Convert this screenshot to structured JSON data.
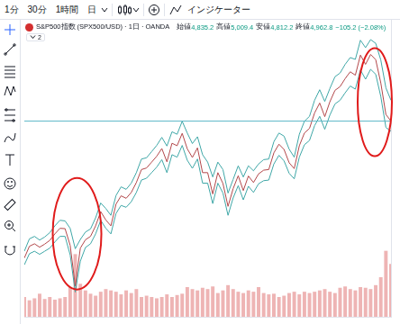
{
  "toolbar": {
    "intervals": [
      "1分",
      "30分",
      "1時間",
      "日"
    ],
    "indicators": "インジケーター"
  },
  "header": {
    "title": "S&P500指数 (SPX500/USD) · 1日 · OANDA",
    "ohlc": [
      {
        "label": "始値",
        "value": "4,835.2"
      },
      {
        "label": "高値",
        "value": "5,009.4"
      },
      {
        "label": "安値",
        "value": "4,812.2"
      },
      {
        "label": "終値",
        "value": "4,962.8"
      }
    ],
    "change": "−105.2 (−2.08%)",
    "indicator_count": 2
  },
  "chart_data": {
    "type": "line",
    "categories": [
      null,
      null,
      null,
      null,
      null,
      null,
      null,
      null,
      null,
      null,
      null,
      null,
      null,
      null,
      null,
      null,
      null,
      null,
      null,
      null,
      null,
      null,
      null,
      null,
      null,
      null,
      null,
      null,
      null,
      null,
      null,
      null,
      null,
      null,
      null,
      null,
      null,
      null,
      null,
      null,
      null,
      null,
      null,
      null,
      null,
      null,
      null,
      null,
      null,
      null,
      null,
      null,
      null,
      null,
      null,
      null,
      null,
      null,
      null,
      null,
      null,
      null,
      null,
      null,
      null,
      null,
      null,
      null,
      null,
      null,
      null,
      null,
      null
    ],
    "series": [
      {
        "type": "line",
        "color": "#b2474a",
        "values": [
          2750,
          2940,
          2980,
          2925,
          2975,
          3035,
          3140,
          3230,
          3225,
          2955,
          2300,
          2910,
          3045,
          3100,
          3270,
          3500,
          3365,
          3270,
          3620,
          3755,
          3715,
          3810,
          3970,
          4180,
          4205,
          4300,
          4395,
          4520,
          4305,
          4605,
          4565,
          4765,
          4515,
          4375,
          4530,
          4130,
          4130,
          3785,
          4130,
          3955,
          3585,
          3870,
          4080,
          3840,
          4075,
          3970,
          4110,
          4170,
          4180,
          4450,
          4590,
          4505,
          4290,
          4195,
          4565,
          4770,
          4845,
          5095,
          5255,
          5035,
          5275,
          5460,
          5520,
          5650,
          5760,
          5705,
          6030,
          5880,
          6040,
          5955,
          5580,
          5070,
          4962.8
        ]
      },
      {
        "type": "line",
        "color": "#3fa7a7",
        "values": [
          2860,
          3060,
          3100,
          3040,
          3090,
          3160,
          3270,
          3360,
          3350,
          3230,
          2900,
          3050,
          3170,
          3220,
          3400,
          3640,
          3550,
          3440,
          3760,
          3900,
          3860,
          3960,
          4130,
          4350,
          4370,
          4470,
          4570,
          4700,
          4560,
          4790,
          4750,
          4960,
          4770,
          4600,
          4710,
          4420,
          4300,
          4060,
          4300,
          4180,
          3800,
          4020,
          4240,
          4060,
          4240,
          4160,
          4270,
          4340,
          4350,
          4630,
          4770,
          4720,
          4510,
          4380,
          4750,
          4960,
          5040,
          5300,
          5470,
          5280,
          5490,
          5680,
          5740,
          5880,
          5990,
          5960,
          6270,
          6150,
          6280,
          6220,
          5950,
          5500,
          5300
        ]
      },
      {
        "type": "line",
        "color": "#3fa7a7",
        "values": [
          2640,
          2820,
          2860,
          2810,
          2860,
          2910,
          3010,
          3100,
          3100,
          2800,
          2200,
          2700,
          2920,
          2980,
          3140,
          3360,
          3230,
          3140,
          3470,
          3600,
          3570,
          3660,
          3810,
          4010,
          4040,
          4130,
          4220,
          4340,
          4130,
          4420,
          4380,
          4570,
          4330,
          4200,
          4350,
          3960,
          3960,
          3630,
          3960,
          3800,
          3440,
          3720,
          3920,
          3690,
          3910,
          3810,
          3950,
          4000,
          4010,
          4270,
          4410,
          4320,
          4120,
          4030,
          4380,
          4580,
          4650,
          4890,
          5040,
          4830,
          5060,
          5240,
          5300,
          5420,
          5530,
          5480,
          5790,
          5640,
          5800,
          5720,
          5360,
          4860,
          4800
        ]
      },
      {
        "type": "bar",
        "axis": "y2",
        "color": "#eeb4b4",
        "values": [
          30,
          25,
          28,
          35,
          27,
          30,
          26,
          28,
          30,
          45,
          95,
          50,
          40,
          35,
          32,
          38,
          42,
          40,
          38,
          34,
          40,
          36,
          42,
          30,
          32,
          30,
          28,
          30,
          34,
          30,
          33,
          35,
          45,
          42,
          40,
          44,
          42,
          46,
          36,
          40,
          48,
          42,
          38,
          36,
          40,
          38,
          45,
          36,
          34,
          35,
          30,
          32,
          36,
          38,
          34,
          38,
          36,
          38,
          40,
          42,
          38,
          36,
          44,
          46,
          42,
          40,
          45,
          44,
          42,
          48,
          60,
          100,
          80
        ]
      }
    ],
    "ylim": [
      1800,
      6600
    ],
    "y2lim": [
      0,
      450
    ],
    "grid": false,
    "tick_labels": false
  }
}
